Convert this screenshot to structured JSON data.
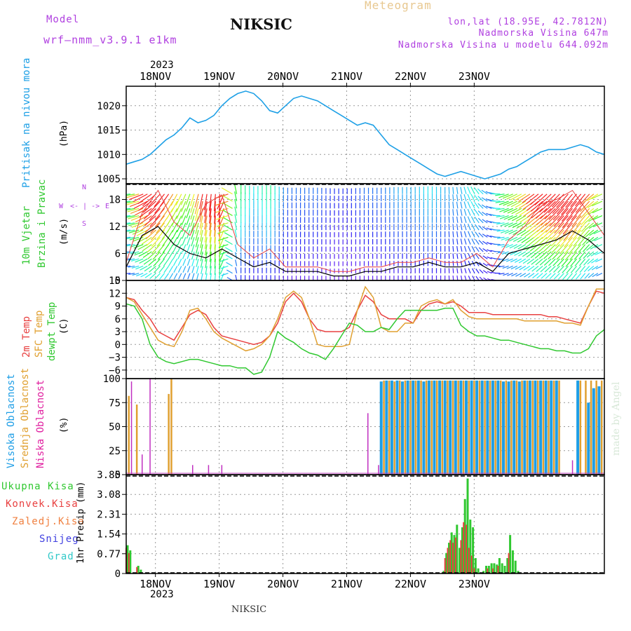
{
  "header": {
    "model_label": "Model",
    "model_name": "wrf—nmm_v3.9.1  e1km",
    "station": "NIKSIC",
    "meteogram": "Meteogram",
    "lonlat": "lon,lat (18.95E, 42.7812N)",
    "elev": "Nadmorska Visina 647m",
    "elev_model": "Nadmorska Visina u modelu 644.092m",
    "footer_station": "NIKSIC",
    "watermark": "made by Angel"
  },
  "colors": {
    "pressure": "#1ea0e6",
    "temp2m": "#e84040",
    "sfc": "#e0a030",
    "dew": "#30c830",
    "high": "#1e9ee6",
    "mid": "#e0a030",
    "low": "#c030c0",
    "precip_total": "#30c830",
    "precip_conv": "#e84040",
    "precip_frz": "#f08040",
    "snow": "#4040e0",
    "grad": "#30c8c8"
  },
  "chart_data": [
    {
      "type": "line",
      "panel": "pressure",
      "label1": "Pritisak na nivou mora",
      "unit": "(hPa)",
      "ylim": [
        1004,
        1024
      ],
      "yticks": [
        "1005",
        "1010",
        "1015",
        "1020"
      ],
      "x": [
        0,
        3,
        6,
        9,
        12,
        15,
        18,
        21,
        24,
        27,
        30,
        33,
        36,
        39,
        42,
        45,
        48,
        51,
        54,
        57,
        60,
        63,
        66,
        69,
        72,
        75,
        78,
        81,
        84,
        87,
        90,
        93,
        96,
        99,
        102,
        105,
        108,
        111,
        114,
        117,
        120,
        123,
        126,
        129,
        132,
        135,
        138,
        141,
        144,
        147,
        150,
        153,
        156,
        159,
        162,
        165,
        168,
        171,
        174,
        177,
        180
      ],
      "values": [
        1008,
        1008.5,
        1009,
        1010,
        1011.5,
        1013,
        1014,
        1015.5,
        1017.5,
        1016.5,
        1017,
        1018,
        1020,
        1021.5,
        1022.5,
        1023,
        1022.5,
        1021,
        1019,
        1018.5,
        1020,
        1021.5,
        1022,
        1021.5,
        1021,
        1020,
        1019,
        1018,
        1017,
        1016,
        1016.5,
        1016,
        1014,
        1012,
        1011,
        1010,
        1009,
        1008,
        1007,
        1006,
        1005.5,
        1006,
        1006.5,
        1006,
        1005.5,
        1005,
        1005.5,
        1006,
        1007,
        1007.5,
        1008.5,
        1009.5,
        1010.5,
        1011,
        1011,
        1011,
        1011.5,
        1012,
        1011.5,
        1010.5,
        1010
      ]
    },
    {
      "type": "line",
      "panel": "wind",
      "label1": "10m Vjetar",
      "label2": "Brzina i Pravac",
      "unit": "(m/s)",
      "compass": [
        "W",
        "<- | ->",
        "E",
        "N",
        "S"
      ],
      "ylim": [
        0,
        21.5
      ],
      "yticks": [
        "0",
        "6",
        "12",
        "18"
      ],
      "x": [
        0,
        6,
        12,
        18,
        24,
        30,
        36,
        42,
        48,
        54,
        60,
        66,
        72,
        78,
        84,
        90,
        96,
        102,
        108,
        114,
        120,
        126,
        132,
        138,
        144,
        150,
        156,
        162,
        168,
        174,
        180
      ],
      "values": [
        3,
        10,
        12,
        8,
        6,
        5,
        7,
        5,
        3,
        4,
        2,
        2,
        2,
        1,
        1,
        2,
        2,
        3,
        3,
        4,
        3,
        3,
        4,
        2,
        6,
        7,
        8,
        9,
        11,
        9,
        6
      ],
      "gust": [
        4,
        15,
        20,
        13,
        10,
        17,
        19,
        8,
        5,
        7,
        3,
        3,
        3,
        2,
        2,
        3,
        3,
        4,
        4,
        5,
        4,
        4,
        6,
        3,
        9,
        12,
        17,
        18,
        20,
        15,
        10
      ],
      "direction_deg": [
        180,
        200,
        225,
        240,
        250,
        260,
        270,
        90,
        90,
        90,
        90,
        90,
        90,
        90,
        90,
        90,
        90,
        90,
        90,
        90,
        90,
        100,
        120,
        160,
        200,
        210,
        220,
        225,
        230,
        230,
        200
      ]
    },
    {
      "type": "line",
      "panel": "temperature",
      "labels": [
        "2m Temp",
        "SFC Temp",
        "dewpt Temp"
      ],
      "unit": "(C)",
      "ylim": [
        -8,
        15
      ],
      "yticks": [
        "−6",
        "−3",
        "0",
        "3",
        "6",
        "9",
        "12",
        "15"
      ],
      "x": [
        0,
        3,
        6,
        9,
        12,
        15,
        18,
        21,
        24,
        27,
        30,
        33,
        36,
        39,
        42,
        45,
        48,
        51,
        54,
        57,
        60,
        63,
        66,
        69,
        72,
        75,
        78,
        81,
        84,
        87,
        90,
        93,
        96,
        99,
        102,
        105,
        108,
        111,
        114,
        117,
        120,
        123,
        126,
        129,
        132,
        135,
        138,
        141,
        144,
        147,
        150,
        153,
        156,
        159,
        162,
        165,
        168,
        171,
        174,
        177,
        180
      ],
      "series": [
        {
          "name": "2m Temp",
          "values": [
            11,
            10.5,
            8,
            6,
            3,
            2,
            1,
            4,
            7,
            8,
            7,
            4,
            2,
            1.5,
            1,
            0.5,
            0,
            0.5,
            2,
            5,
            10,
            12,
            10,
            6,
            3.5,
            3,
            3,
            3,
            4,
            8,
            11.5,
            10,
            7,
            6,
            6,
            6,
            5,
            8,
            9.5,
            10,
            9.5,
            10,
            9,
            7.5,
            7.5,
            7.5,
            7,
            7,
            7,
            7,
            7,
            7,
            7,
            6.5,
            6.5,
            6,
            5.5,
            5,
            9,
            12.5,
            12
          ]
        },
        {
          "name": "SFC Temp",
          "values": [
            11,
            10,
            7,
            4,
            1,
            0,
            -0.5,
            3,
            8,
            8.5,
            6,
            3,
            1.5,
            0.5,
            -0.5,
            -1.5,
            -1,
            0,
            2,
            6,
            11,
            12.5,
            11,
            6,
            0,
            -0.5,
            -0.5,
            -0.5,
            0,
            8,
            13.5,
            11,
            4,
            3,
            3,
            5,
            5,
            9,
            10,
            10.5,
            9.5,
            10.5,
            8,
            6.5,
            6,
            6,
            6,
            6,
            6,
            6,
            5.5,
            5.5,
            5.5,
            5.5,
            5.5,
            5,
            5,
            4.5,
            9,
            13,
            13
          ]
        },
        {
          "name": "dewpt Temp",
          "values": [
            9.5,
            9,
            6,
            0,
            -3,
            -4,
            -4.5,
            -4,
            -3.5,
            -3.5,
            -4,
            -4.5,
            -5,
            -5,
            -5.5,
            -5.5,
            -7,
            -6.5,
            -3,
            3,
            1.5,
            0.5,
            -1,
            -2,
            -2.5,
            -3.5,
            -1,
            2,
            5,
            4.5,
            3,
            3,
            4,
            3.5,
            6,
            8,
            8,
            8,
            8,
            8,
            8.5,
            8.5,
            4.5,
            3,
            2,
            2,
            1.5,
            1,
            1,
            0.5,
            0,
            -0.5,
            -1,
            -1,
            -1.5,
            -1.5,
            -2,
            -2,
            -1,
            2,
            3.5
          ]
        }
      ]
    },
    {
      "type": "bar",
      "panel": "clouds",
      "labels": [
        "Visoka Oblacnost",
        "Srednja Oblacnost",
        "Niska Oblacnost"
      ],
      "unit": "(%)",
      "ylim": [
        0,
        100
      ],
      "yticks": [
        "0",
        "25",
        "50",
        "75",
        "100"
      ],
      "series": [
        {
          "name": "Visoka Oblacnost",
          "bars": [
            [
              96,
              97
            ],
            [
              98,
              98
            ],
            [
              100,
              98
            ],
            [
              102,
              98
            ],
            [
              104,
              97
            ],
            [
              106,
              98
            ],
            [
              108,
              98
            ],
            [
              110,
              98
            ],
            [
              112,
              97
            ],
            [
              114,
              98
            ],
            [
              116,
              98
            ],
            [
              118,
              98
            ],
            [
              120,
              98
            ],
            [
              122,
              98
            ],
            [
              124,
              98
            ],
            [
              126,
              98
            ],
            [
              128,
              98
            ],
            [
              130,
              98
            ],
            [
              132,
              98
            ],
            [
              134,
              98
            ],
            [
              136,
              98
            ],
            [
              138,
              98
            ],
            [
              140,
              98
            ],
            [
              142,
              97
            ],
            [
              144,
              97
            ],
            [
              146,
              98
            ],
            [
              148,
              97
            ],
            [
              150,
              98
            ],
            [
              152,
              98
            ],
            [
              154,
              98
            ],
            [
              156,
              98
            ],
            [
              158,
              98
            ],
            [
              160,
              98
            ],
            [
              162,
              98
            ],
            [
              170,
              98
            ],
            [
              174,
              75
            ],
            [
              176,
              90
            ],
            [
              178,
              92
            ]
          ]
        },
        {
          "name": "Srednja Oblacnost",
          "bars": [
            [
              1,
              82
            ],
            [
              4,
              73
            ],
            [
              16,
              84
            ],
            [
              17,
              100
            ],
            [
              97,
              98
            ],
            [
              99,
              98
            ],
            [
              101,
              97
            ],
            [
              103,
              98
            ],
            [
              105,
              98
            ],
            [
              107,
              98
            ],
            [
              109,
              98
            ],
            [
              111,
              98
            ],
            [
              113,
              98
            ],
            [
              115,
              98
            ],
            [
              117,
              98
            ],
            [
              119,
              98
            ],
            [
              121,
              98
            ],
            [
              123,
              98
            ],
            [
              125,
              98
            ],
            [
              127,
              98
            ],
            [
              129,
              98
            ],
            [
              131,
              98
            ],
            [
              133,
              98
            ],
            [
              135,
              98
            ],
            [
              137,
              98
            ],
            [
              139,
              98
            ],
            [
              141,
              98
            ],
            [
              143,
              98
            ],
            [
              145,
              98
            ],
            [
              147,
              98
            ],
            [
              149,
              98
            ],
            [
              151,
              98
            ],
            [
              153,
              98
            ],
            [
              155,
              98
            ],
            [
              157,
              98
            ],
            [
              159,
              98
            ],
            [
              161,
              98
            ],
            [
              163,
              98
            ],
            [
              171,
              98
            ],
            [
              173,
              98
            ],
            [
              175,
              98
            ],
            [
              177,
              98
            ],
            [
              179,
              98
            ]
          ]
        },
        {
          "name": "Niska Oblacnost",
          "bars": [
            [
              2,
              97
            ],
            [
              6,
              21
            ],
            [
              9,
              100
            ],
            [
              25,
              10
            ],
            [
              31,
              10
            ],
            [
              36,
              10
            ],
            [
              91,
              64
            ],
            [
              95,
              10
            ],
            [
              168,
              15
            ]
          ]
        }
      ]
    },
    {
      "type": "bar",
      "panel": "precip",
      "labels": [
        "Ukupna Kisa",
        "Konvek.Kisa",
        "Zaledj.Kisa",
        "Snijeg",
        "Grad"
      ],
      "unit": "1hr Precip (mm)",
      "ylim": [
        0,
        3.85
      ],
      "yticks": [
        "0",
        "0.77",
        "1.54",
        "2.31",
        "3.08",
        "3.85"
      ],
      "x_ticks": [
        "18NOV",
        "19NOV",
        "20NOV",
        "21NOV",
        "22NOV",
        "23NOV"
      ],
      "year": "2023",
      "series": [
        {
          "name": "Ukupna Kisa",
          "bars": [
            [
              0,
              1.1
            ],
            [
              1,
              0.9
            ],
            [
              4,
              0.3
            ],
            [
              5,
              0.15
            ],
            [
              119,
              0.1
            ],
            [
              120,
              0.8
            ],
            [
              121,
              1.2
            ],
            [
              122,
              1.6
            ],
            [
              123,
              1.5
            ],
            [
              124,
              1.9
            ],
            [
              125,
              1.0
            ],
            [
              126,
              1.8
            ],
            [
              127,
              2.9
            ],
            [
              128,
              3.7
            ],
            [
              129,
              2.1
            ],
            [
              130,
              1.8
            ],
            [
              131,
              0.6
            ],
            [
              132,
              0.2
            ],
            [
              134,
              0.1
            ],
            [
              135,
              0.3
            ],
            [
              136,
              0.3
            ],
            [
              137,
              0.4
            ],
            [
              138,
              0.4
            ],
            [
              139,
              0.35
            ],
            [
              140,
              0.6
            ],
            [
              141,
              0.4
            ],
            [
              142,
              0.3
            ],
            [
              143,
              0.6
            ],
            [
              144,
              1.5
            ],
            [
              145,
              0.9
            ],
            [
              146,
              0.5
            ],
            [
              147,
              0.1
            ]
          ]
        },
        {
          "name": "Konvek.Kisa",
          "bars": [
            [
              0,
              1.0
            ],
            [
              1,
              0.8
            ],
            [
              4,
              0.25
            ],
            [
              120,
              0.6
            ],
            [
              121,
              1.0
            ],
            [
              122,
              1.3
            ],
            [
              123,
              1.2
            ],
            [
              124,
              1.4
            ],
            [
              126,
              1.3
            ],
            [
              127,
              2.0
            ],
            [
              128,
              1.9
            ],
            [
              129,
              1.0
            ],
            [
              130,
              0.7
            ],
            [
              131,
              0.2
            ],
            [
              136,
              0.2
            ],
            [
              138,
              0.2
            ],
            [
              140,
              0.3
            ],
            [
              144,
              0.8
            ]
          ]
        }
      ]
    }
  ]
}
